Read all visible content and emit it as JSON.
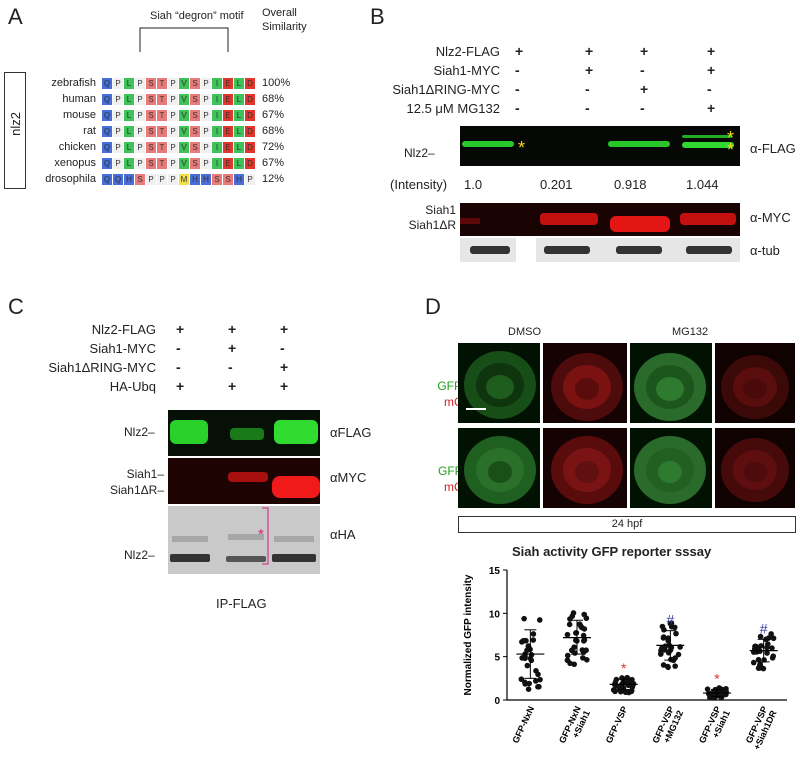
{
  "panels": {
    "a": "A",
    "b": "B",
    "c": "C",
    "d": "D"
  },
  "panel_a": {
    "motif_label": "Siah “degron” motif",
    "similarity_header_1": "Overall",
    "similarity_header_2": "Similarity",
    "gene_label": "nlz2",
    "rows": [
      {
        "species": "zebrafish",
        "residues": [
          "Q",
          "P",
          "L",
          "P",
          "S",
          "T",
          "P",
          "V",
          "S",
          "P",
          "I",
          "E",
          "L",
          "D"
        ],
        "similarity": "100%"
      },
      {
        "species": "human",
        "residues": [
          "Q",
          "P",
          "L",
          "P",
          "S",
          "T",
          "P",
          "V",
          "S",
          "P",
          "I",
          "E",
          "L",
          "D"
        ],
        "similarity": "68%"
      },
      {
        "species": "mouse",
        "residues": [
          "Q",
          "P",
          "L",
          "P",
          "S",
          "T",
          "P",
          "V",
          "S",
          "P",
          "I",
          "E",
          "L",
          "D"
        ],
        "similarity": "67%"
      },
      {
        "species": "rat",
        "residues": [
          "Q",
          "P",
          "L",
          "P",
          "S",
          "T",
          "P",
          "V",
          "S",
          "P",
          "I",
          "E",
          "L",
          "D"
        ],
        "similarity": "68%"
      },
      {
        "species": "chicken",
        "residues": [
          "Q",
          "P",
          "L",
          "P",
          "S",
          "T",
          "P",
          "V",
          "S",
          "P",
          "I",
          "E",
          "L",
          "D"
        ],
        "similarity": "72%"
      },
      {
        "species": "xenopus",
        "residues": [
          "Q",
          "P",
          "L",
          "P",
          "S",
          "T",
          "P",
          "V",
          "S",
          "P",
          "I",
          "E",
          "L",
          "D"
        ],
        "similarity": "67%"
      },
      {
        "species": "drosophila",
        "residues": [
          "Q",
          "Q",
          "H",
          "S",
          "P",
          "P",
          "P",
          "M",
          "H",
          "H",
          "S",
          "S",
          "H",
          "P"
        ],
        "similarity": "12%"
      }
    ]
  },
  "panel_b": {
    "conditions": [
      {
        "label": "Nlz2-FLAG",
        "marks": [
          "+",
          "+",
          "+",
          "+"
        ]
      },
      {
        "label": "Siah1-MYC",
        "marks": [
          "-",
          "+",
          "-",
          "+"
        ]
      },
      {
        "label": "Siah1ΔRING-MYC",
        "marks": [
          "-",
          "-",
          "+",
          "-"
        ]
      },
      {
        "label": "12.5 μM MG132",
        "marks": [
          "-",
          "-",
          "-",
          "+"
        ]
      }
    ],
    "band_nlz2": "Nlz2",
    "intensity_label": "(Intensity)",
    "intensities": [
      "1.0",
      "0.201",
      "0.918",
      "1.044"
    ],
    "siah1": "Siah1",
    "siah1dr": "Siah1ΔR",
    "ab_flag": "α-FLAG",
    "ab_myc": "α-MYC",
    "ab_tub": "α-tub",
    "star": "*"
  },
  "panel_c": {
    "conditions": [
      {
        "label": "Nlz2-FLAG",
        "marks": [
          "+",
          "+",
          "+"
        ]
      },
      {
        "label": "Siah1-MYC",
        "marks": [
          "-",
          "+",
          "-"
        ]
      },
      {
        "label": "Siah1ΔRING-MYC",
        "marks": [
          "-",
          "-",
          "+"
        ]
      },
      {
        "label": "HA-Ubq",
        "marks": [
          "+",
          "+",
          "+"
        ]
      }
    ],
    "nlz2": "Nlz2",
    "siah1": "Siah1",
    "siah1dr": "Siah1ΔR",
    "nlz2_bottom": "Nlz2",
    "ab_flag": "αFLAG",
    "ab_myc": "αMYC",
    "ab_ha": "αHA",
    "star": "*",
    "footer": "IP-FLAG"
  },
  "panel_d": {
    "col_dmso": "DMSO",
    "col_mg132": "MG132",
    "row1_label_1": "GFP-VSP",
    "row1_label_2": "mCherry",
    "row2_label_1": "GFP-NxN",
    "row2_label_2": "mCherry",
    "stage": "24 hpf",
    "colors": {
      "green": "#1fa31f",
      "red": "#d42020",
      "sig_red": "#e03030",
      "sig_blue": "#3a3aa0"
    }
  },
  "chart_data": {
    "type": "scatter",
    "title": "Siah activity GFP reporter sssay",
    "ylabel": "Normalized GFP intensity",
    "ylim": [
      0,
      15
    ],
    "yticks": [
      0,
      5,
      10,
      15
    ],
    "categories": [
      "GFP-NxN",
      "GFP-NxN +Siah1",
      "GFP-VSP",
      "GFP-VSP +MG132",
      "GFP-VSP +Siah1",
      "GFP-VSP +Siah1DR"
    ],
    "series": [
      {
        "category": "GFP-NxN",
        "mean": 5.3,
        "sd_low": 2.5,
        "sd_high": 8.1,
        "marker": ""
      },
      {
        "category": "GFP-NxN +Siah1",
        "mean": 7.2,
        "sd_low": 5.3,
        "sd_high": 9.2,
        "marker": ""
      },
      {
        "category": "GFP-VSP",
        "mean": 1.8,
        "sd_low": 1.2,
        "sd_high": 2.4,
        "marker": "*"
      },
      {
        "category": "GFP-VSP +MG132",
        "mean": 6.3,
        "sd_low": 4.6,
        "sd_high": 8.0,
        "marker": "#"
      },
      {
        "category": "GFP-VSP +Siah1",
        "mean": 0.8,
        "sd_low": 0.4,
        "sd_high": 1.2,
        "marker": "*"
      },
      {
        "category": "GFP-VSP +Siah1DR",
        "mean": 5.7,
        "sd_low": 4.4,
        "sd_high": 7.0,
        "marker": "#"
      }
    ]
  }
}
